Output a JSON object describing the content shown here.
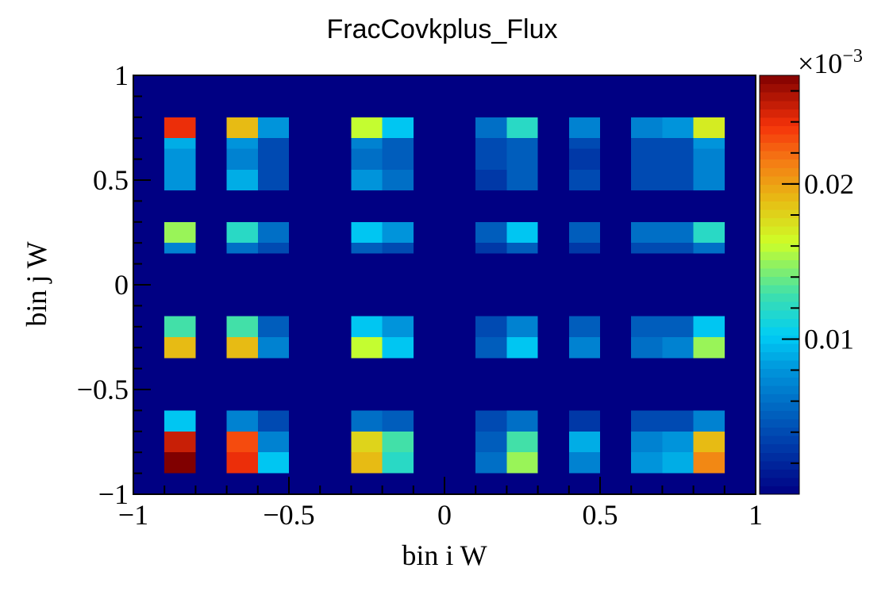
{
  "chart_data": {
    "type": "heatmap",
    "title": "FracCovkplus_Flux",
    "xlabel": "bin i W",
    "ylabel": "bin j W",
    "xlim": [
      -1,
      1
    ],
    "ylim": [
      -1,
      1
    ],
    "x_ticks": [
      -1,
      -0.5,
      0,
      0.5,
      1
    ],
    "x_tick_labels": [
      "−1",
      "−0.5",
      "0",
      "0.5",
      "1"
    ],
    "y_ticks": [
      -1,
      -0.5,
      0,
      0.5,
      1
    ],
    "y_tick_labels": [
      "−1",
      "−0.5",
      "0",
      "0.5",
      "1"
    ],
    "grid": false,
    "colorscale": "rainbow",
    "zlim": [
      0,
      0.027
    ],
    "z_multiplier_label": "×10",
    "z_multiplier_exponent": "−3",
    "z_ticks": [
      0.01,
      0.02
    ],
    "z_tick_labels": [
      "0.01",
      "0.02"
    ],
    "background_value": 0,
    "x_bins": [
      -0.9,
      -0.8,
      -0.7,
      -0.6,
      -0.5,
      -0.3,
      -0.2,
      -0.1,
      0.1,
      0.2,
      0.3,
      0.4,
      0.5,
      0.6,
      0.7,
      0.8,
      0.9
    ],
    "y_bins": [
      -0.9,
      -0.8,
      -0.7,
      -0.6,
      -0.5,
      -0.35,
      -0.25,
      -0.15,
      0.15,
      0.2,
      0.3,
      0.45,
      0.55,
      0.65,
      0.7,
      0.8,
      0.9
    ],
    "cells": [
      {
        "x": 0,
        "y": 0,
        "v": 0.027
      },
      {
        "x": 2,
        "y": 0,
        "v": 0.024
      },
      {
        "x": 3,
        "y": 0,
        "v": 0.01
      },
      {
        "x": 5,
        "y": 0,
        "v": 0.019
      },
      {
        "x": 6,
        "y": 0,
        "v": 0.012
      },
      {
        "x": 8,
        "y": 0,
        "v": 0.006
      },
      {
        "x": 9,
        "y": 0,
        "v": 0.015
      },
      {
        "x": 11,
        "y": 0,
        "v": 0.007
      },
      {
        "x": 13,
        "y": 0,
        "v": 0.008
      },
      {
        "x": 14,
        "y": 0,
        "v": 0.009
      },
      {
        "x": 15,
        "y": 0,
        "v": 0.021
      },
      {
        "x": 0,
        "y": 1,
        "v": 0.025
      },
      {
        "x": 2,
        "y": 1,
        "v": 0.023
      },
      {
        "x": 3,
        "y": 1,
        "v": 0.007
      },
      {
        "x": 5,
        "y": 1,
        "v": 0.018
      },
      {
        "x": 6,
        "y": 1,
        "v": 0.013
      },
      {
        "x": 8,
        "y": 1,
        "v": 0.005
      },
      {
        "x": 9,
        "y": 1,
        "v": 0.013
      },
      {
        "x": 11,
        "y": 1,
        "v": 0.009
      },
      {
        "x": 13,
        "y": 1,
        "v": 0.007
      },
      {
        "x": 14,
        "y": 1,
        "v": 0.008
      },
      {
        "x": 15,
        "y": 1,
        "v": 0.019
      },
      {
        "x": 0,
        "y": 2,
        "v": 0.01
      },
      {
        "x": 2,
        "y": 2,
        "v": 0.007
      },
      {
        "x": 3,
        "y": 2,
        "v": 0.004
      },
      {
        "x": 5,
        "y": 2,
        "v": 0.006
      },
      {
        "x": 6,
        "y": 2,
        "v": 0.005
      },
      {
        "x": 8,
        "y": 2,
        "v": 0.004
      },
      {
        "x": 9,
        "y": 2,
        "v": 0.006
      },
      {
        "x": 11,
        "y": 2,
        "v": 0.003
      },
      {
        "x": 13,
        "y": 2,
        "v": 0.004
      },
      {
        "x": 14,
        "y": 2,
        "v": 0.004
      },
      {
        "x": 15,
        "y": 2,
        "v": 0.007
      },
      {
        "x": 0,
        "y": 5,
        "v": 0.019
      },
      {
        "x": 2,
        "y": 5,
        "v": 0.019
      },
      {
        "x": 3,
        "y": 5,
        "v": 0.007
      },
      {
        "x": 5,
        "y": 5,
        "v": 0.016
      },
      {
        "x": 6,
        "y": 5,
        "v": 0.01
      },
      {
        "x": 8,
        "y": 5,
        "v": 0.005
      },
      {
        "x": 9,
        "y": 5,
        "v": 0.01
      },
      {
        "x": 11,
        "y": 5,
        "v": 0.007
      },
      {
        "x": 13,
        "y": 5,
        "v": 0.006
      },
      {
        "x": 14,
        "y": 5,
        "v": 0.007
      },
      {
        "x": 15,
        "y": 5,
        "v": 0.015
      },
      {
        "x": 0,
        "y": 6,
        "v": 0.013
      },
      {
        "x": 2,
        "y": 6,
        "v": 0.013
      },
      {
        "x": 3,
        "y": 6,
        "v": 0.005
      },
      {
        "x": 5,
        "y": 6,
        "v": 0.01
      },
      {
        "x": 6,
        "y": 6,
        "v": 0.008
      },
      {
        "x": 8,
        "y": 6,
        "v": 0.004
      },
      {
        "x": 9,
        "y": 6,
        "v": 0.007
      },
      {
        "x": 11,
        "y": 6,
        "v": 0.005
      },
      {
        "x": 13,
        "y": 6,
        "v": 0.005
      },
      {
        "x": 14,
        "y": 6,
        "v": 0.005
      },
      {
        "x": 15,
        "y": 6,
        "v": 0.01
      },
      {
        "x": 0,
        "y": 8,
        "v": 0.007
      },
      {
        "x": 2,
        "y": 8,
        "v": 0.006
      },
      {
        "x": 3,
        "y": 8,
        "v": 0.004
      },
      {
        "x": 5,
        "y": 8,
        "v": 0.005
      },
      {
        "x": 6,
        "y": 8,
        "v": 0.004
      },
      {
        "x": 8,
        "y": 8,
        "v": 0.003
      },
      {
        "x": 9,
        "y": 8,
        "v": 0.005
      },
      {
        "x": 11,
        "y": 8,
        "v": 0.003
      },
      {
        "x": 13,
        "y": 8,
        "v": 0.004
      },
      {
        "x": 14,
        "y": 8,
        "v": 0.004
      },
      {
        "x": 15,
        "y": 8,
        "v": 0.006
      },
      {
        "x": 0,
        "y": 9,
        "v": 0.015
      },
      {
        "x": 2,
        "y": 9,
        "v": 0.012
      },
      {
        "x": 3,
        "y": 9,
        "v": 0.006
      },
      {
        "x": 5,
        "y": 9,
        "v": 0.01
      },
      {
        "x": 6,
        "y": 9,
        "v": 0.008
      },
      {
        "x": 8,
        "y": 9,
        "v": 0.005
      },
      {
        "x": 9,
        "y": 9,
        "v": 0.01
      },
      {
        "x": 11,
        "y": 9,
        "v": 0.005
      },
      {
        "x": 13,
        "y": 9,
        "v": 0.006
      },
      {
        "x": 14,
        "y": 9,
        "v": 0.006
      },
      {
        "x": 15,
        "y": 9,
        "v": 0.012
      },
      {
        "x": 0,
        "y": 11,
        "v": 0.008
      },
      {
        "x": 2,
        "y": 11,
        "v": 0.009
      },
      {
        "x": 3,
        "y": 11,
        "v": 0.004
      },
      {
        "x": 5,
        "y": 11,
        "v": 0.008
      },
      {
        "x": 6,
        "y": 11,
        "v": 0.006
      },
      {
        "x": 8,
        "y": 11,
        "v": 0.003
      },
      {
        "x": 9,
        "y": 11,
        "v": 0.005
      },
      {
        "x": 11,
        "y": 11,
        "v": 0.004
      },
      {
        "x": 13,
        "y": 11,
        "v": 0.004
      },
      {
        "x": 14,
        "y": 11,
        "v": 0.004
      },
      {
        "x": 15,
        "y": 11,
        "v": 0.007
      },
      {
        "x": 0,
        "y": 12,
        "v": 0.008
      },
      {
        "x": 2,
        "y": 12,
        "v": 0.007
      },
      {
        "x": 3,
        "y": 12,
        "v": 0.004
      },
      {
        "x": 5,
        "y": 12,
        "v": 0.006
      },
      {
        "x": 6,
        "y": 12,
        "v": 0.005
      },
      {
        "x": 8,
        "y": 12,
        "v": 0.004
      },
      {
        "x": 9,
        "y": 12,
        "v": 0.005
      },
      {
        "x": 11,
        "y": 12,
        "v": 0.003
      },
      {
        "x": 13,
        "y": 12,
        "v": 0.004
      },
      {
        "x": 14,
        "y": 12,
        "v": 0.004
      },
      {
        "x": 15,
        "y": 12,
        "v": 0.007
      },
      {
        "x": 0,
        "y": 13,
        "v": 0.009
      },
      {
        "x": 2,
        "y": 13,
        "v": 0.008
      },
      {
        "x": 3,
        "y": 13,
        "v": 0.004
      },
      {
        "x": 5,
        "y": 13,
        "v": 0.007
      },
      {
        "x": 6,
        "y": 13,
        "v": 0.005
      },
      {
        "x": 8,
        "y": 13,
        "v": 0.004
      },
      {
        "x": 9,
        "y": 13,
        "v": 0.005
      },
      {
        "x": 11,
        "y": 13,
        "v": 0.004
      },
      {
        "x": 13,
        "y": 13,
        "v": 0.004
      },
      {
        "x": 14,
        "y": 13,
        "v": 0.004
      },
      {
        "x": 15,
        "y": 13,
        "v": 0.008
      },
      {
        "x": 0,
        "y": 14,
        "v": 0.024
      },
      {
        "x": 2,
        "y": 14,
        "v": 0.019
      },
      {
        "x": 3,
        "y": 14,
        "v": 0.008
      },
      {
        "x": 5,
        "y": 14,
        "v": 0.016
      },
      {
        "x": 6,
        "y": 14,
        "v": 0.01
      },
      {
        "x": 8,
        "y": 14,
        "v": 0.006
      },
      {
        "x": 9,
        "y": 14,
        "v": 0.012
      },
      {
        "x": 11,
        "y": 14,
        "v": 0.007
      },
      {
        "x": 13,
        "y": 14,
        "v": 0.007
      },
      {
        "x": 14,
        "y": 14,
        "v": 0.008
      },
      {
        "x": 15,
        "y": 14,
        "v": 0.017
      }
    ]
  }
}
